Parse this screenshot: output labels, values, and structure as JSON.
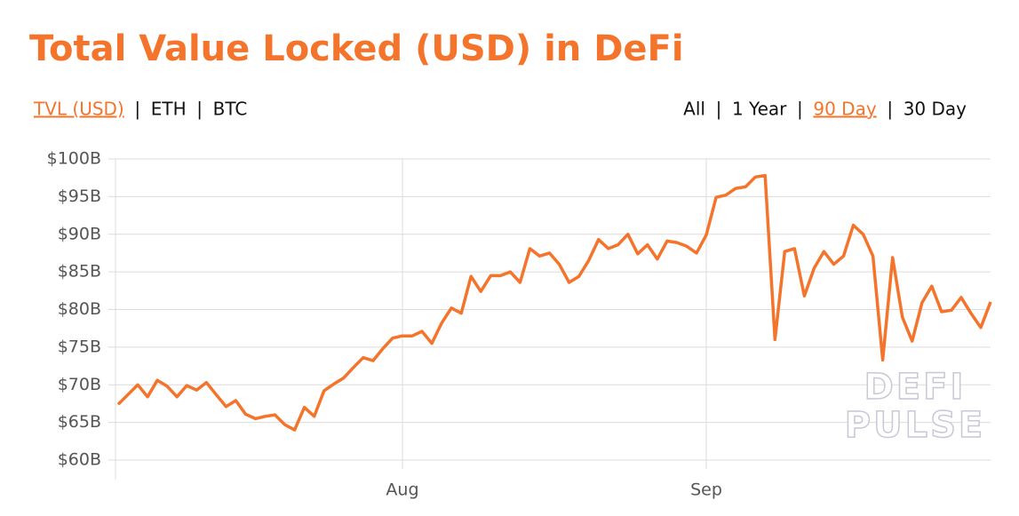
{
  "chart_data": {
    "type": "line",
    "title": "Total Value Locked (USD) in DeFi",
    "tabs_left": {
      "items": [
        "TVL (USD)",
        "ETH",
        "BTC"
      ],
      "active": 0
    },
    "tabs_right": {
      "items": [
        "All",
        "1 Year",
        "90 Day",
        "30 Day"
      ],
      "active": 2
    },
    "watermark": [
      "DEFI",
      "PULSE"
    ],
    "categories": [
      null,
      null,
      null,
      null,
      null,
      null,
      null,
      null,
      null,
      null,
      null,
      null,
      null,
      null,
      null,
      null,
      null,
      null,
      null,
      null,
      null,
      null,
      null,
      null,
      null,
      null,
      null,
      null,
      null,
      "Aug",
      null,
      null,
      null,
      null,
      null,
      null,
      null,
      null,
      null,
      null,
      null,
      null,
      null,
      null,
      null,
      null,
      null,
      null,
      null,
      null,
      null,
      null,
      null,
      null,
      null,
      null,
      null,
      null,
      null,
      null,
      "Sep",
      null,
      null,
      null,
      null,
      null,
      null,
      null,
      null,
      null,
      null,
      null,
      null,
      null,
      null,
      null,
      null,
      null,
      null,
      null,
      null,
      null,
      null,
      null,
      null,
      null,
      null,
      null,
      null,
      null
    ],
    "series": [
      {
        "name": "TVL (USD)",
        "color": "#f4742b",
        "values": [
          67.4,
          68.7,
          70.0,
          68.4,
          70.6,
          69.8,
          68.4,
          69.9,
          69.3,
          70.3,
          68.7,
          67.1,
          67.9,
          66.1,
          65.5,
          65.8,
          66.0,
          64.7,
          64.0,
          67.0,
          65.8,
          69.2,
          70.1,
          70.9,
          72.3,
          73.6,
          73.2,
          74.8,
          76.2,
          76.5,
          76.5,
          77.1,
          75.5,
          78.2,
          80.2,
          79.5,
          84.4,
          82.4,
          84.5,
          84.5,
          85.0,
          83.6,
          88.1,
          87.1,
          87.5,
          86.0,
          83.6,
          84.4,
          86.5,
          89.3,
          88.1,
          88.6,
          90.0,
          87.4,
          88.6,
          86.7,
          89.1,
          88.9,
          88.4,
          87.5,
          89.9,
          94.9,
          95.2,
          96.1,
          96.3,
          97.6,
          97.8,
          76.0,
          87.7,
          88.1,
          81.8,
          85.5,
          87.7,
          86.0,
          87.1,
          91.2,
          90.0,
          87.1,
          73.3,
          86.9,
          79.0,
          75.8,
          80.9,
          83.1,
          79.7,
          79.9,
          81.6,
          79.5,
          77.6,
          81.0
        ]
      }
    ],
    "ylim": [
      60,
      100
    ],
    "yticks": [
      {
        "value": 60,
        "label": "$60B"
      },
      {
        "value": 65,
        "label": "$65B"
      },
      {
        "value": 70,
        "label": "$70B"
      },
      {
        "value": 75,
        "label": "$75B"
      },
      {
        "value": 80,
        "label": "$80B"
      },
      {
        "value": 85,
        "label": "$85B"
      },
      {
        "value": 90,
        "label": "$90B"
      },
      {
        "value": 95,
        "label": "$95B"
      },
      {
        "value": 100,
        "label": "$100B"
      }
    ],
    "grid": true
  }
}
